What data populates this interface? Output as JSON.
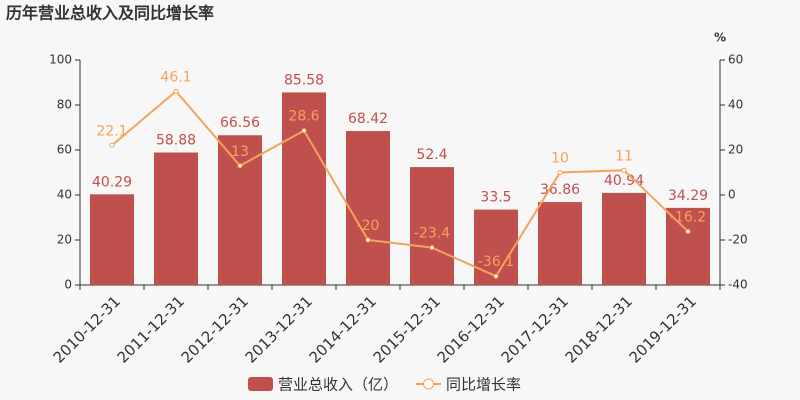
{
  "chart_data": {
    "type": "bar",
    "title": "历年营业总收入及同比增长率",
    "categories": [
      "2010-12-31",
      "2011-12-31",
      "2012-12-31",
      "2013-12-31",
      "2014-12-31",
      "2015-12-31",
      "2016-12-31",
      "2017-12-31",
      "2018-12-31",
      "2019-12-31"
    ],
    "series": [
      {
        "name": "营业总收入（亿）",
        "type": "bar",
        "color": "#c0504d",
        "values": [
          40.29,
          58.88,
          66.56,
          85.58,
          68.42,
          52.4,
          33.5,
          36.86,
          40.94,
          34.29
        ]
      },
      {
        "name": "同比增长率",
        "type": "line",
        "axis": "y2",
        "color": "#f4a35a",
        "values": [
          22.1,
          46.1,
          13,
          28.6,
          -20,
          -23.4,
          -36.1,
          10,
          11,
          -16.2
        ]
      }
    ],
    "ylim": [
      0,
      100
    ],
    "yticks": [
      0,
      20,
      40,
      60,
      80,
      100
    ],
    "y2lim": [
      -40,
      60
    ],
    "y2ticks": [
      -40,
      -20,
      0,
      20,
      40,
      60
    ],
    "y2label": "%",
    "grid": false
  }
}
